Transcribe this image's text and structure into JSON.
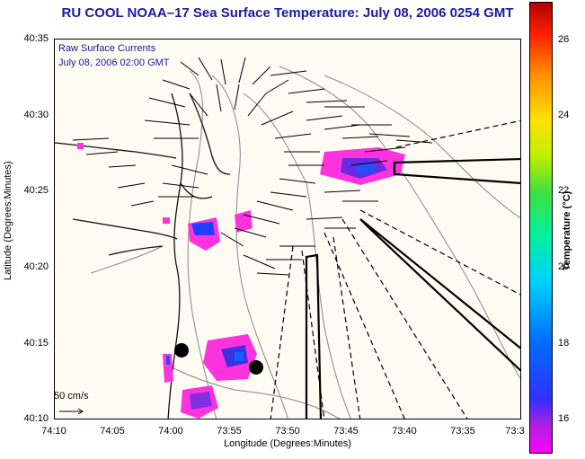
{
  "title": "RU COOL  NOAA–17  Sea Surface Temperature:  July 08, 2006 0254 GMT",
  "legend": {
    "line1": "Raw Surface Currents",
    "line2": "July 08, 2006 02:00 GMT"
  },
  "axes": {
    "xlabel": "Longitude (Degrees:Minutes)",
    "ylabel": "Latitude (Degrees:Minutes)",
    "x_ticks": [
      "74:10",
      "74:05",
      "74:00",
      "73:55",
      "73:50",
      "73:45",
      "73:40",
      "73:35",
      "73:3"
    ],
    "y_ticks": [
      "40:35",
      "40:30",
      "40:25",
      "40:20",
      "40:15",
      "40:10"
    ]
  },
  "colorbar": {
    "title": "Temperature (°C)",
    "ticks": [
      "26",
      "24",
      "22",
      "20",
      "18",
      "16"
    ]
  },
  "scale_vector": {
    "label": "50 cm/s"
  }
}
